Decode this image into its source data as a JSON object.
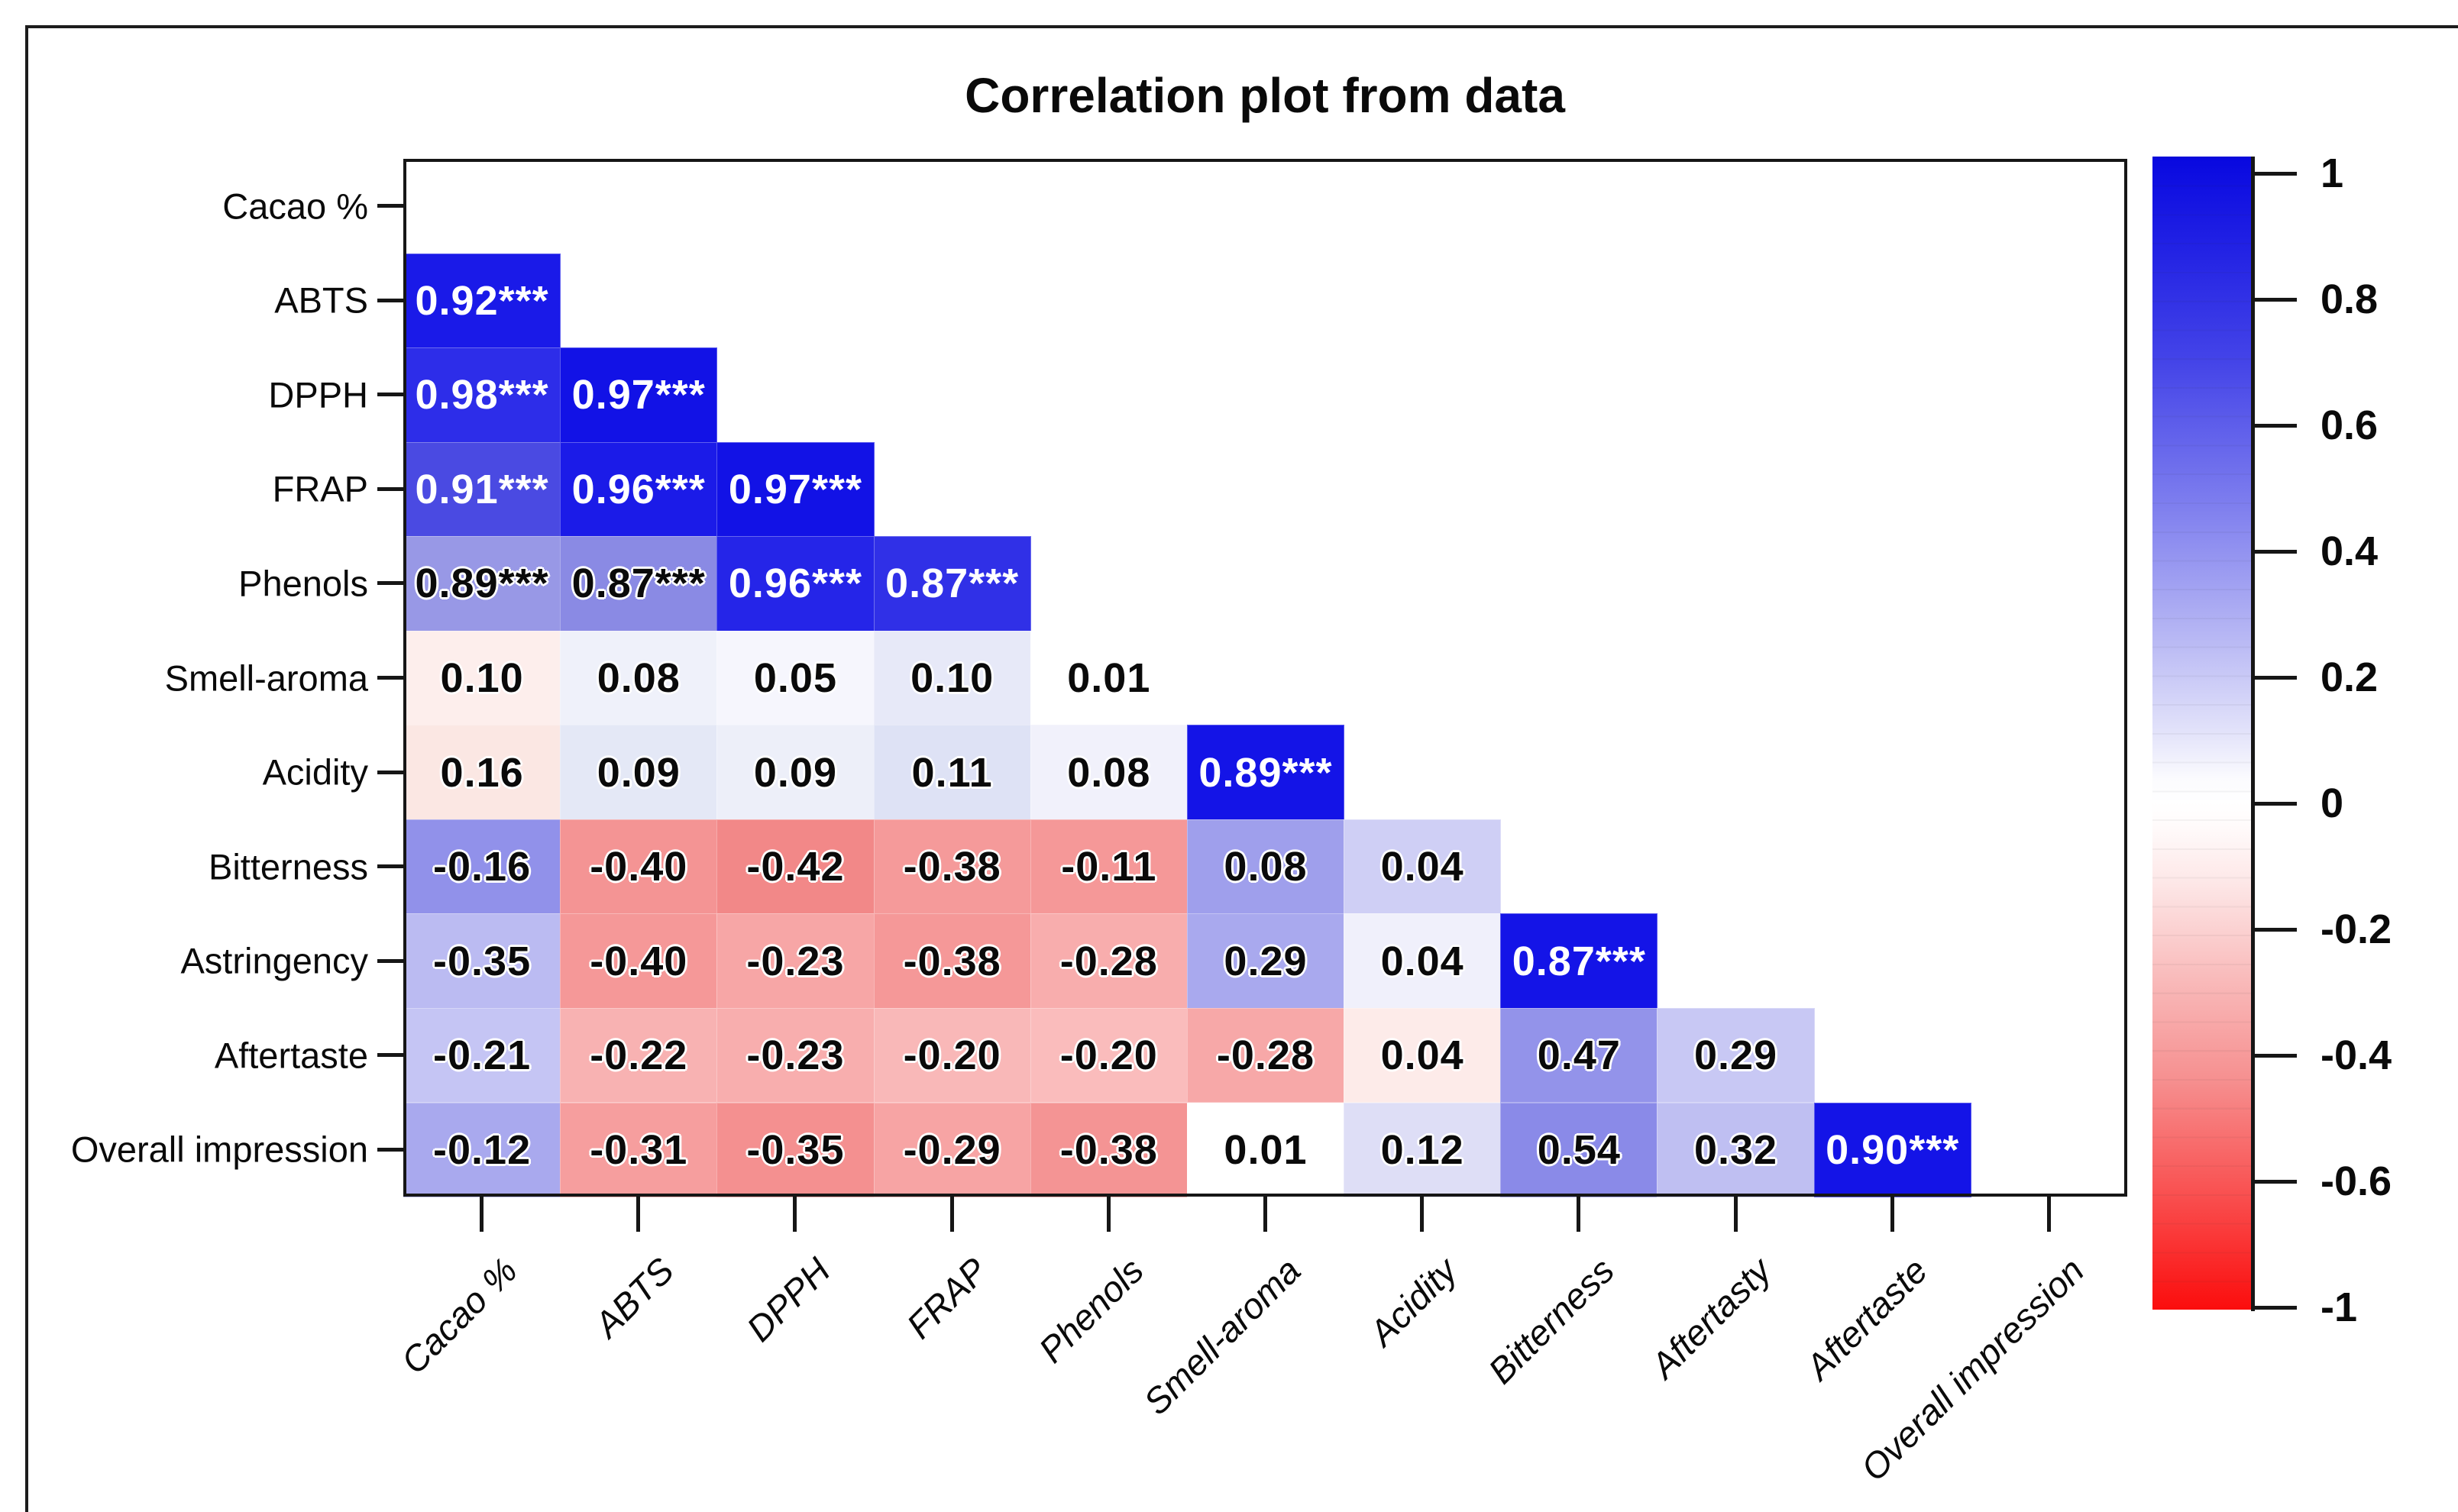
{
  "chart_data": {
    "type": "heatmap",
    "title": "Correlation plot from data",
    "subtitle": "",
    "legend_position": "right",
    "grid": false,
    "significance_marker": "***",
    "row_labels": [
      "Cacao %",
      "ABTS",
      "DPPH",
      "FRAP",
      "Phenols",
      "Smell-aroma",
      "Acidity",
      "Bitterness",
      "Astringency",
      "Aftertaste",
      "Overall impression"
    ],
    "col_labels": [
      "Cacao %",
      "ABTS",
      "DPPH",
      "FRAP",
      "Phenols",
      "Smell-aroma",
      "Acidity",
      "Bitterness",
      "Aftertasty",
      "Aftertaste",
      "Overall impression"
    ],
    "colorbar": {
      "min": -1,
      "max": 1,
      "tick_labels": [
        "1",
        "0.8",
        "0.6",
        "0.4",
        "0.2",
        "0",
        "-0.2",
        "-0.4",
        "-0.6",
        "-1"
      ],
      "top_color": "#0808e0",
      "zero_color": "#ffffff",
      "bottom_color": "#fb0d0d"
    },
    "cells": [
      {
        "r": 1,
        "c": 0,
        "text": "0.92***",
        "value": 0.92,
        "bg": "#1a1ae8",
        "fg": "#ffffff"
      },
      {
        "r": 2,
        "c": 0,
        "text": "0.98***",
        "value": 0.98,
        "bg": "#2d2de9",
        "fg": "#ffffff"
      },
      {
        "r": 2,
        "c": 1,
        "text": "0.97***",
        "value": 0.97,
        "bg": "#1212e6",
        "fg": "#ffffff"
      },
      {
        "r": 3,
        "c": 0,
        "text": "0.91***",
        "value": 0.91,
        "bg": "#4a4ae2",
        "fg": "#ffffff"
      },
      {
        "r": 3,
        "c": 1,
        "text": "0.96***",
        "value": 0.96,
        "bg": "#1b1be8",
        "fg": "#ffffff"
      },
      {
        "r": 3,
        "c": 2,
        "text": "0.97***",
        "value": 0.97,
        "bg": "#1212e6",
        "fg": "#ffffff"
      },
      {
        "r": 4,
        "c": 0,
        "text": "0.89***",
        "value": 0.89,
        "bg": "#9898e6"
      },
      {
        "r": 4,
        "c": 1,
        "text": "0.87***",
        "value": 0.87,
        "bg": "#8a8ae4"
      },
      {
        "r": 4,
        "c": 2,
        "text": "0.96***",
        "value": 0.96,
        "bg": "#2525e8",
        "fg": "#ffffff"
      },
      {
        "r": 4,
        "c": 3,
        "text": "0.87***",
        "value": 0.87,
        "bg": "#3030e7",
        "fg": "#ffffff"
      },
      {
        "r": 5,
        "c": 0,
        "text": "0.10",
        "value": 0.1,
        "bg": "#fdeeec"
      },
      {
        "r": 5,
        "c": 1,
        "text": "0.08",
        "value": 0.08,
        "bg": "#eff1fa"
      },
      {
        "r": 5,
        "c": 2,
        "text": "0.05",
        "value": 0.05,
        "bg": "#f6f6fd"
      },
      {
        "r": 5,
        "c": 3,
        "text": "0.10",
        "value": 0.1,
        "bg": "#e7e9f8"
      },
      {
        "r": 5,
        "c": 4,
        "text": "0.01",
        "value": 0.01,
        "bg": "#ffffff"
      },
      {
        "r": 6,
        "c": 0,
        "text": "0.16",
        "value": 0.16,
        "bg": "#fbe7e3"
      },
      {
        "r": 6,
        "c": 1,
        "text": "0.09",
        "value": 0.09,
        "bg": "#e4e8f6"
      },
      {
        "r": 6,
        "c": 2,
        "text": "0.09",
        "value": 0.09,
        "bg": "#edeff9"
      },
      {
        "r": 6,
        "c": 3,
        "text": "0.11",
        "value": 0.11,
        "bg": "#dee2f5"
      },
      {
        "r": 6,
        "c": 4,
        "text": "0.08",
        "value": 0.08,
        "bg": "#f1f1fb"
      },
      {
        "r": 6,
        "c": 5,
        "text": "0.89***",
        "value": 0.89,
        "bg": "#1414e7",
        "fg": "#ffffff"
      },
      {
        "r": 7,
        "c": 0,
        "text": "-0.16",
        "value": -0.16,
        "bg": "#9191ea"
      },
      {
        "r": 7,
        "c": 1,
        "text": "-0.40",
        "value": -0.4,
        "bg": "#f49494"
      },
      {
        "r": 7,
        "c": 2,
        "text": "-0.42",
        "value": -0.42,
        "bg": "#f28888"
      },
      {
        "r": 7,
        "c": 3,
        "text": "-0.38",
        "value": -0.38,
        "bg": "#f59a9a"
      },
      {
        "r": 7,
        "c": 4,
        "text": "-0.11",
        "value": -0.11,
        "bg": "#f59898"
      },
      {
        "r": 7,
        "c": 5,
        "text": "0.08",
        "value": 0.08,
        "bg": "#9f9fec"
      },
      {
        "r": 7,
        "c": 6,
        "text": "0.04",
        "value": 0.04,
        "bg": "#cfcff5"
      },
      {
        "r": 8,
        "c": 0,
        "text": "-0.35",
        "value": -0.35,
        "bg": "#bbbbf2"
      },
      {
        "r": 8,
        "c": 1,
        "text": "-0.40",
        "value": -0.4,
        "bg": "#f59898"
      },
      {
        "r": 8,
        "c": 2,
        "text": "-0.23",
        "value": -0.23,
        "bg": "#f7a6a6"
      },
      {
        "r": 8,
        "c": 3,
        "text": "-0.38",
        "value": -0.38,
        "bg": "#f59898"
      },
      {
        "r": 8,
        "c": 4,
        "text": "-0.28",
        "value": -0.28,
        "bg": "#f8adad"
      },
      {
        "r": 8,
        "c": 5,
        "text": "0.29",
        "value": 0.29,
        "bg": "#a9a9ee"
      },
      {
        "r": 8,
        "c": 6,
        "text": "0.04",
        "value": 0.04,
        "bg": "#f0f0fb"
      },
      {
        "r": 8,
        "c": 7,
        "text": "0.87***",
        "value": 0.87,
        "bg": "#1414e7",
        "fg": "#ffffff"
      },
      {
        "r": 9,
        "c": 0,
        "text": "-0.21",
        "value": -0.21,
        "bg": "#c5c5f4"
      },
      {
        "r": 9,
        "c": 1,
        "text": "-0.22",
        "value": -0.22,
        "bg": "#f8b2b2"
      },
      {
        "r": 9,
        "c": 2,
        "text": "-0.23",
        "value": -0.23,
        "bg": "#f8aeae"
      },
      {
        "r": 9,
        "c": 3,
        "text": "-0.20",
        "value": -0.2,
        "bg": "#f9b8b8"
      },
      {
        "r": 9,
        "c": 4,
        "text": "-0.20",
        "value": -0.2,
        "bg": "#fabcbc"
      },
      {
        "r": 9,
        "c": 5,
        "text": "-0.28",
        "value": -0.28,
        "bg": "#f7a8a8"
      },
      {
        "r": 9,
        "c": 6,
        "text": "0.04",
        "value": 0.04,
        "bg": "#fdebe9"
      },
      {
        "r": 9,
        "c": 7,
        "text": "0.47",
        "value": 0.47,
        "bg": "#9393ea"
      },
      {
        "r": 9,
        "c": 8,
        "text": "0.29",
        "value": 0.29,
        "bg": "#c8c8f4"
      },
      {
        "r": 10,
        "c": 0,
        "text": "-0.12",
        "value": -0.12,
        "bg": "#a9a9ee"
      },
      {
        "r": 10,
        "c": 1,
        "text": "-0.31",
        "value": -0.31,
        "bg": "#f69e9e"
      },
      {
        "r": 10,
        "c": 2,
        "text": "-0.35",
        "value": -0.35,
        "bg": "#f49090"
      },
      {
        "r": 10,
        "c": 3,
        "text": "-0.29",
        "value": -0.29,
        "bg": "#f7a4a4"
      },
      {
        "r": 10,
        "c": 4,
        "text": "-0.38",
        "value": -0.38,
        "bg": "#f49494"
      },
      {
        "r": 10,
        "c": 5,
        "text": "0.01",
        "value": 0.01,
        "bg": "#ffffff"
      },
      {
        "r": 10,
        "c": 6,
        "text": "0.12",
        "value": 0.12,
        "bg": "#dedef6"
      },
      {
        "r": 10,
        "c": 7,
        "text": "0.54",
        "value": 0.54,
        "bg": "#8a8ae8"
      },
      {
        "r": 10,
        "c": 8,
        "text": "0.32",
        "value": 0.32,
        "bg": "#bfbff2"
      },
      {
        "r": 10,
        "c": 9,
        "text": "0.90***",
        "value": 0.9,
        "bg": "#1414e7",
        "fg": "#ffffff"
      }
    ]
  }
}
